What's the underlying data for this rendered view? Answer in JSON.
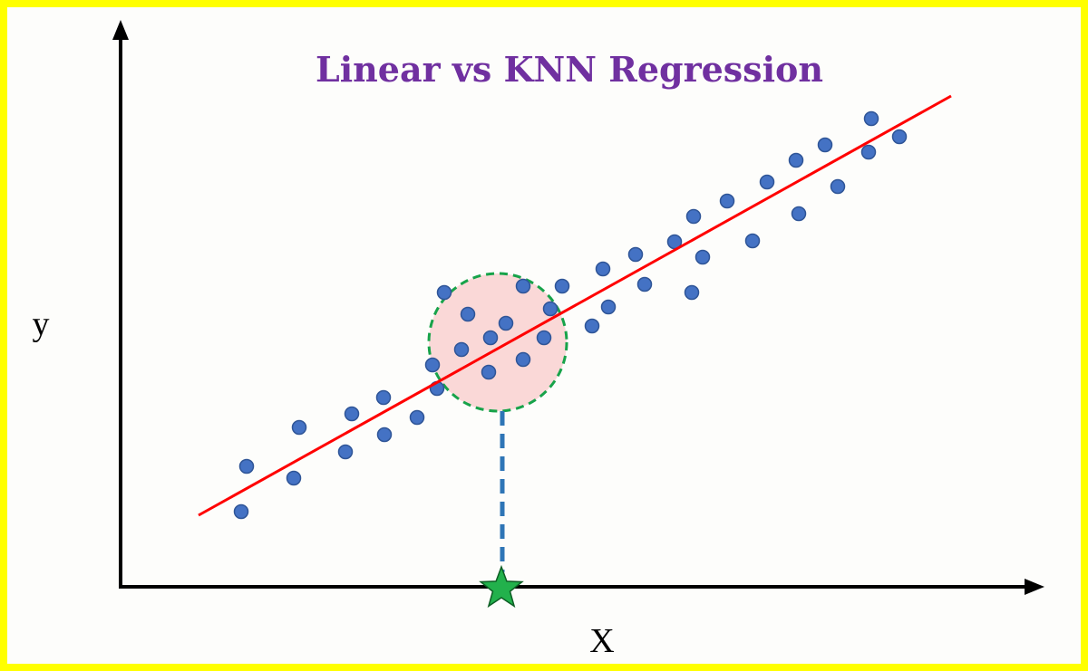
{
  "title": "Linear vs KNN Regression",
  "x_axis_label": "X",
  "y_axis_label": "y",
  "colors": {
    "frame_border": "#ffff00",
    "title": "#7030a0",
    "axes": "#000000",
    "points": "#4472c4",
    "points_outline": "#2f5597",
    "regression_line": "#ff0000",
    "neighborhood_fill": "#f8cbcb",
    "neighborhood_border": "#17a34a",
    "projection_line": "#2e75b6",
    "query_star": "#22b14c"
  },
  "elements": {
    "regression_line": "linear-regression-line",
    "neighborhood": "knn-neighborhood-circle",
    "query_marker": "star-icon"
  }
}
